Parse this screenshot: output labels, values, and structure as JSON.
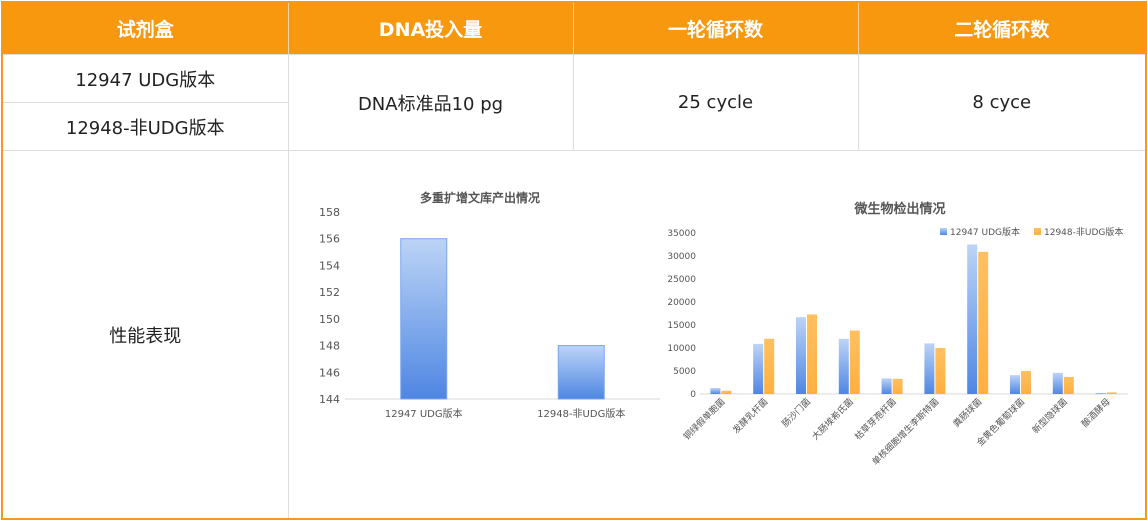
{
  "table": {
    "headers": [
      "试剂盒",
      "DNA投入量",
      "一轮循环数",
      "二轮循环数"
    ],
    "kit1": "12947 UDG版本",
    "kit2": "12948-非UDG版本",
    "dna_input": "DNA标准品10 pg",
    "cycle1": "25 cycle",
    "cycle2": "8 cyce",
    "performance_label": "性能表现"
  },
  "colors": {
    "header": "#f7980f",
    "series1": "#5b8ee6",
    "series2": "#ffb24a"
  },
  "chart_data": [
    {
      "type": "bar",
      "title": "多重扩增文库产出情况",
      "categories": [
        "12947 UDG版本",
        "12948-非UDG版本"
      ],
      "values": [
        156,
        148
      ],
      "ylim": [
        144,
        158
      ],
      "yticks": [
        "144",
        "146",
        "148",
        "150",
        "152",
        "154",
        "156",
        "158"
      ],
      "grid": false
    },
    {
      "type": "bar",
      "title": "微生物检出情况",
      "categories": [
        "铜绿假单胞菌",
        "发酵乳杆菌",
        "肠沙门菌",
        "大肠埃希氏菌",
        "枯草芽孢杆菌",
        "单核细胞增生李斯特菌",
        "粪肠球菌",
        "金黄色葡萄球菌",
        "新型隐球菌",
        "酿酒酵母"
      ],
      "series": [
        {
          "name": "12947 UDG版本",
          "values": [
            1300,
            10900,
            16700,
            12000,
            3400,
            11000,
            32500,
            4100,
            4600,
            200
          ]
        },
        {
          "name": "12948-非UDG版本",
          "values": [
            700,
            12000,
            17300,
            13800,
            3300,
            10000,
            30900,
            5000,
            3700,
            350
          ]
        }
      ],
      "ylim": [
        0,
        35000
      ],
      "yticks": [
        "0",
        "5000",
        "10000",
        "15000",
        "20000",
        "25000",
        "30000",
        "35000"
      ],
      "legend": "top-right",
      "grid": false
    }
  ]
}
